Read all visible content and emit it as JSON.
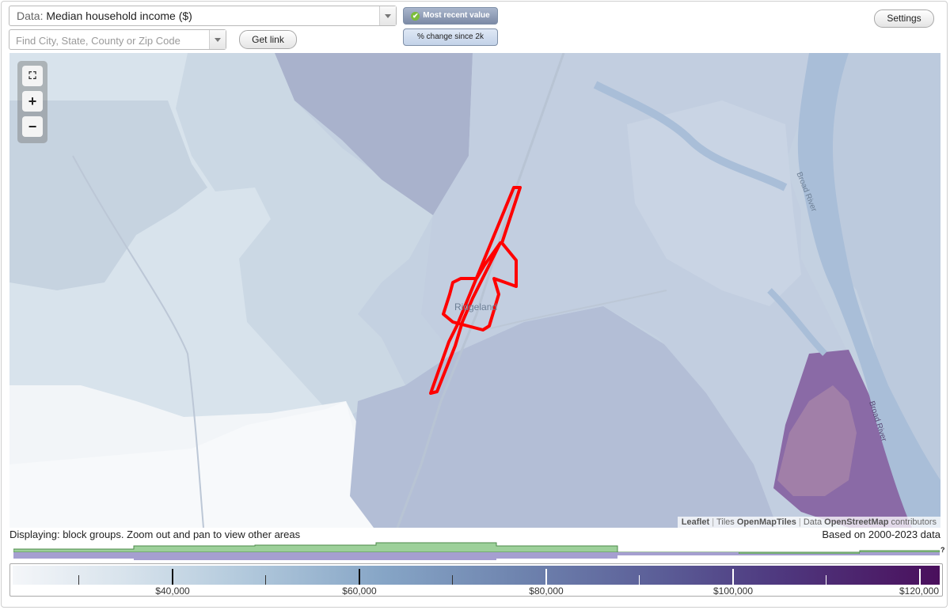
{
  "header": {
    "data_prefix": "Data:",
    "data_value": "Median household income ($)",
    "search_placeholder": "Find City, State, County or Zip Code",
    "get_link_label": "Get link",
    "settings_label": "Settings",
    "toggle_active_label": "Most recent value",
    "toggle_inactive_label": "% change since 2k"
  },
  "map": {
    "place_label": "Ridgeland",
    "river_label_1": "Broad River",
    "river_label_2": "Broad River",
    "zoom_fit_symbol": "⛶",
    "zoom_in_symbol": "+",
    "zoom_out_symbol": "−",
    "attribution": {
      "leaflet": "Leaflet",
      "tiles_prefix": "Tiles",
      "tiles_source": "OpenMapTiles",
      "data_prefix": "Data",
      "data_source": "OpenStreetMap",
      "data_suffix": "contributors"
    },
    "highlight_color": "#ff0000"
  },
  "footer": {
    "displaying_text": "Displaying: block groups. Zoom out and pan to view other areas",
    "based_on_text": "Based on 2000-2023 data",
    "help_symbol": "?"
  },
  "legend": {
    "labels": [
      "$40,000",
      "$60,000",
      "$80,000",
      "$100,000",
      "$120,000"
    ],
    "colors": {
      "low": "#f4f6f9",
      "mid": "#86a5c6",
      "high": "#4a0f5c",
      "histogram_green": "#9dd09a",
      "histogram_purple": "#a59fd0"
    }
  }
}
